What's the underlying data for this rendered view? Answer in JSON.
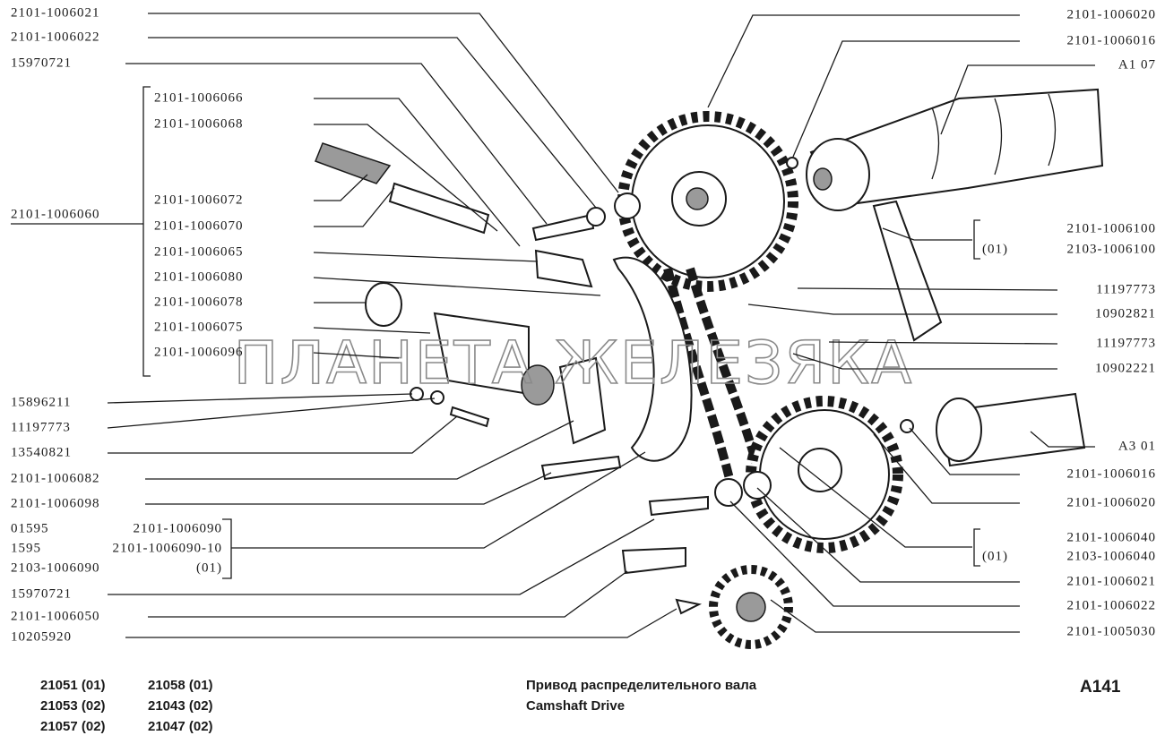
{
  "left_callouts": [
    "2101-1006021",
    "2101-1006022",
    "15970721",
    "15896211",
    "11197773",
    "13540821",
    "2101-1006082",
    "2101-1006098",
    "15970721",
    "2101-1006050",
    "10205920"
  ],
  "assembly": {
    "label": "2101-1006060",
    "items": [
      "2101-1006066",
      "2101-1006068",
      "2101-1006072",
      "2101-1006070",
      "2101-1006065",
      "2101-1006080",
      "2101-1006078",
      "2101-1006075",
      "2101-1006096"
    ]
  },
  "left_group": {
    "rows": [
      [
        "01595",
        "2101-1006090"
      ],
      [
        "1595",
        "2101-1006090-10"
      ],
      [
        "2103-1006090",
        "(01)"
      ]
    ]
  },
  "right_callouts": [
    "2101-1006020",
    "2101-1006016",
    "A1 07",
    "11197773",
    "10902821",
    "11197773",
    "10902221",
    "A3 01",
    "2101-1006016",
    "2101-1006020",
    "2101-1006021",
    "2101-1006022",
    "2101-1005030"
  ],
  "right_groups": [
    {
      "rows": [
        {
          "text": "2101-1006100"
        },
        {
          "variant": "(01)",
          "text": "2103-1006100"
        }
      ]
    },
    {
      "rows": [
        {
          "text": "2101-1006040"
        },
        {
          "variant": "(01)",
          "text": "2103-1006040"
        }
      ]
    }
  ],
  "models": [
    [
      "21051 (01)",
      "21058 (01)"
    ],
    [
      "21053 (02)",
      "21043 (02)"
    ],
    [
      "21057 (02)",
      "21047 (02)"
    ]
  ],
  "title": {
    "ru": "Привод распределительного вала",
    "en": "Camshaft Drive"
  },
  "code": "A141",
  "watermark": "ПЛАНЕТА ЖЕЛЕЗЯКА"
}
